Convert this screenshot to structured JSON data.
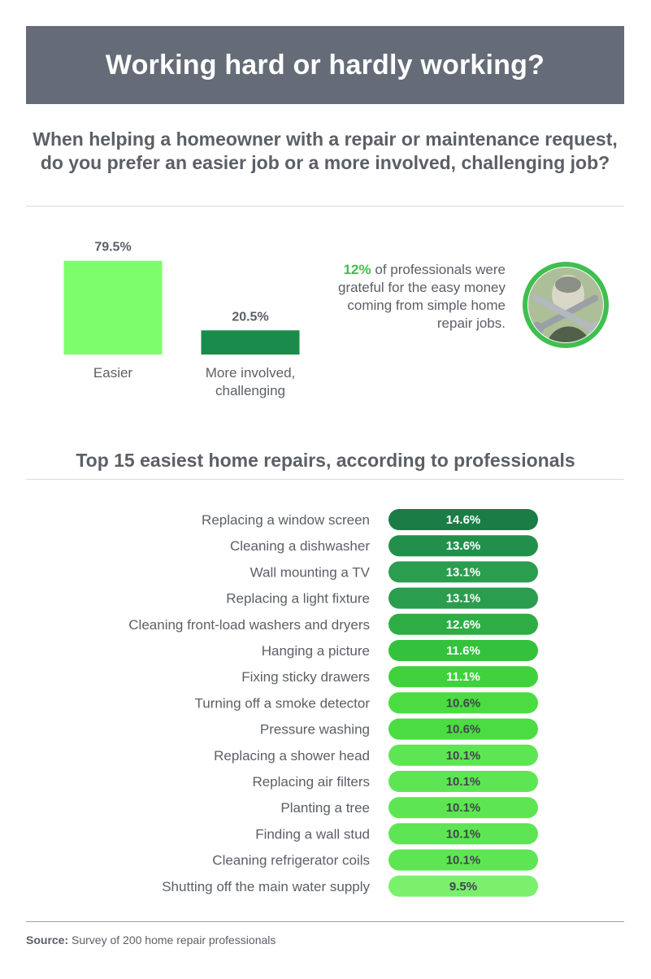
{
  "title": "Working hard or hardly working?",
  "question": "When helping a homeowner with a repair or maintenance request, do you prefer an easier job or a more involved, challenging job?",
  "callout": {
    "highlight": "12%",
    "text": "of professionals were grateful for the easy money coming from simple home repair jobs.",
    "icon": "money-wrench-icon"
  },
  "section_title": "Top 15 easiest home repairs, according to professionals",
  "source": {
    "label": "Source:",
    "text": "Survey of 200 home repair professionals"
  },
  "colors": {
    "banner": "#656c77",
    "text": "#5b6066",
    "easier": "#7cfd6c",
    "challenging": "#1a8b4a",
    "highlight": "#3fbf4f"
  },
  "chart_data": [
    {
      "type": "bar",
      "categories": [
        "Easier",
        "More involved, challenging"
      ],
      "values": [
        79.5,
        20.5
      ],
      "value_labels": [
        "79.5%",
        "20.5%"
      ],
      "colors": [
        "#7cfd6c",
        "#1a8b4a"
      ],
      "ylim": [
        0,
        100
      ],
      "title": "",
      "xlabel": "",
      "ylabel": ""
    },
    {
      "type": "bar",
      "orientation": "horizontal",
      "categories": [
        "Replacing a window screen",
        "Cleaning a dishwasher",
        "Wall mounting a TV",
        "Replacing a light fixture",
        "Cleaning front-load washers and dryers",
        "Hanging a picture",
        "Fixing sticky drawers",
        "Turning off a smoke detector",
        "Pressure washing",
        "Replacing a shower head",
        "Replacing air filters",
        "Planting a tree",
        "Finding a wall stud",
        "Cleaning refrigerator coils",
        "Shutting off the main water supply"
      ],
      "values": [
        14.6,
        13.6,
        13.1,
        13.1,
        12.6,
        11.6,
        11.1,
        10.6,
        10.6,
        10.1,
        10.1,
        10.1,
        10.1,
        10.1,
        9.5
      ],
      "value_labels": [
        "14.6%",
        "13.6%",
        "13.1%",
        "13.1%",
        "12.6%",
        "11.6%",
        "11.1%",
        "10.6%",
        "10.6%",
        "10.1%",
        "10.1%",
        "10.1%",
        "10.1%",
        "10.1%",
        "9.5%"
      ],
      "colors": [
        "#1b7c45",
        "#22904b",
        "#2b9d4e",
        "#2b9d4e",
        "#2fad45",
        "#34c23c",
        "#40d23c",
        "#4bdc42",
        "#4bdc42",
        "#5ee553",
        "#5ee553",
        "#5ee553",
        "#5ee553",
        "#5ee553",
        "#7af06d"
      ],
      "title": "",
      "xlabel": "",
      "ylabel": ""
    }
  ]
}
